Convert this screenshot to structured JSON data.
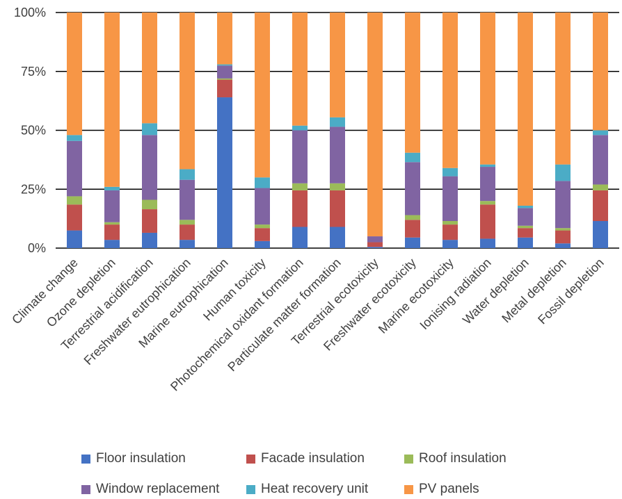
{
  "chart_data": {
    "type": "bar",
    "stacked": true,
    "percent_stacked": true,
    "categories": [
      "Climate change",
      "Ozone depletion",
      "Terrestrial acidification",
      "Freshwater eutrophication",
      "Marine eutrophication",
      "Human toxicity",
      "Photochemical oxidant formation",
      "Particulate matter formation",
      "Terrestrial ecotoxicity",
      "Freshwater ecotoxicity",
      "Marine ecotoxicity",
      "Ionising radiation",
      "Water depletion",
      "Metal depletion",
      "Fossil depletion"
    ],
    "ylim": [
      0,
      100
    ],
    "yticks": [
      0,
      25,
      50,
      75,
      100
    ],
    "ytick_labels": [
      "0%",
      "25%",
      "50%",
      "75%",
      "100%"
    ],
    "grid": true,
    "legend_position": "bottom",
    "series": [
      {
        "name": "Floor insulation",
        "color": "#4472C4",
        "values": [
          7.5,
          3.5,
          6.5,
          3.5,
          64,
          3,
          9,
          9,
          0.5,
          4.5,
          3.5,
          4,
          4.5,
          2,
          11.5
        ]
      },
      {
        "name": "Facade insulation",
        "color": "#C0504D",
        "values": [
          11,
          6.5,
          10,
          6.5,
          7.5,
          5.5,
          15.5,
          15.5,
          2,
          7.5,
          6.5,
          14.5,
          4,
          5.5,
          13
        ]
      },
      {
        "name": "Roof insulation",
        "color": "#9BBB59",
        "values": [
          3.5,
          1,
          4,
          2,
          0.5,
          1.5,
          3,
          3,
          0,
          2,
          1.5,
          1.5,
          1,
          1,
          2.5
        ]
      },
      {
        "name": "Window replacement",
        "color": "#8064A2",
        "values": [
          23.5,
          13.5,
          27.5,
          17,
          5.5,
          15.5,
          22.5,
          24,
          2.5,
          22.5,
          19,
          14.5,
          7.5,
          20,
          21
        ]
      },
      {
        "name": "Heat recovery unit",
        "color": "#4BACC6",
        "values": [
          2.5,
          1.5,
          5,
          4.5,
          0.5,
          4.5,
          2,
          4,
          0,
          4,
          3.5,
          1,
          1,
          7,
          2
        ]
      },
      {
        "name": "PV panels",
        "color": "#F79646",
        "values": [
          52,
          74,
          47,
          66.5,
          22,
          70,
          48,
          44.5,
          95,
          59.5,
          66,
          64.5,
          82,
          64.5,
          50
        ]
      }
    ]
  }
}
